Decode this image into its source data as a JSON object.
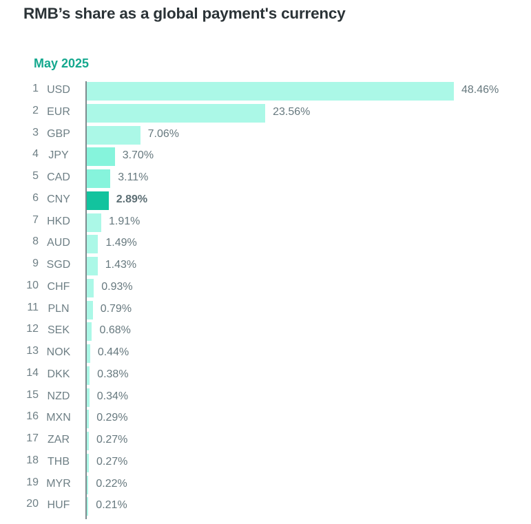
{
  "title": "RMB’s share as a global payment's currency",
  "subtitle": "May 2025",
  "colors": {
    "bar_default": "#abf8e7",
    "bar_mid": "#86f4dc",
    "bar_highlight": "#12c39e",
    "subtitle": "#14a88e",
    "title": "#2b3337",
    "label": "#6e7f85"
  },
  "rows": [
    {
      "rank": "1",
      "code": "USD",
      "value": "48.46%"
    },
    {
      "rank": "2",
      "code": "EUR",
      "value": "23.56%"
    },
    {
      "rank": "3",
      "code": "GBP",
      "value": "7.06%"
    },
    {
      "rank": "4",
      "code": "JPY",
      "value": "3.70%"
    },
    {
      "rank": "5",
      "code": "CAD",
      "value": "3.11%"
    },
    {
      "rank": "6",
      "code": "CNY",
      "value": "2.89%"
    },
    {
      "rank": "7",
      "code": "HKD",
      "value": "1.91%"
    },
    {
      "rank": "8",
      "code": "AUD",
      "value": "1.49%"
    },
    {
      "rank": "9",
      "code": "SGD",
      "value": "1.43%"
    },
    {
      "rank": "10",
      "code": "CHF",
      "value": "0.93%"
    },
    {
      "rank": "11",
      "code": "PLN",
      "value": "0.79%"
    },
    {
      "rank": "12",
      "code": "SEK",
      "value": "0.68%"
    },
    {
      "rank": "13",
      "code": "NOK",
      "value": "0.44%"
    },
    {
      "rank": "14",
      "code": "DKK",
      "value": "0.38%"
    },
    {
      "rank": "15",
      "code": "NZD",
      "value": "0.34%"
    },
    {
      "rank": "16",
      "code": "MXN",
      "value": "0.29%"
    },
    {
      "rank": "17",
      "code": "ZAR",
      "value": "0.27%"
    },
    {
      "rank": "18",
      "code": "THB",
      "value": "0.27%"
    },
    {
      "rank": "19",
      "code": "MYR",
      "value": "0.22%"
    },
    {
      "rank": "20",
      "code": "HUF",
      "value": "0.21%"
    }
  ],
  "chart_data": {
    "type": "bar",
    "orientation": "horizontal",
    "title": "RMB’s share as a global payment's currency",
    "subtitle": "May 2025",
    "xlabel": "",
    "ylabel": "",
    "categories": [
      "USD",
      "EUR",
      "GBP",
      "JPY",
      "CAD",
      "CNY",
      "HKD",
      "AUD",
      "SGD",
      "CHF",
      "PLN",
      "SEK",
      "NOK",
      "DKK",
      "NZD",
      "MXN",
      "ZAR",
      "THB",
      "MYR",
      "HUF"
    ],
    "ranks": [
      1,
      2,
      3,
      4,
      5,
      6,
      7,
      8,
      9,
      10,
      11,
      12,
      13,
      14,
      15,
      16,
      17,
      18,
      19,
      20
    ],
    "values": [
      48.46,
      23.56,
      7.06,
      3.7,
      3.11,
      2.89,
      1.91,
      1.49,
      1.43,
      0.93,
      0.79,
      0.68,
      0.44,
      0.38,
      0.34,
      0.29,
      0.27,
      0.27,
      0.22,
      0.21
    ],
    "unit": "%",
    "highlighted": "CNY",
    "grid": false,
    "legend": null
  }
}
